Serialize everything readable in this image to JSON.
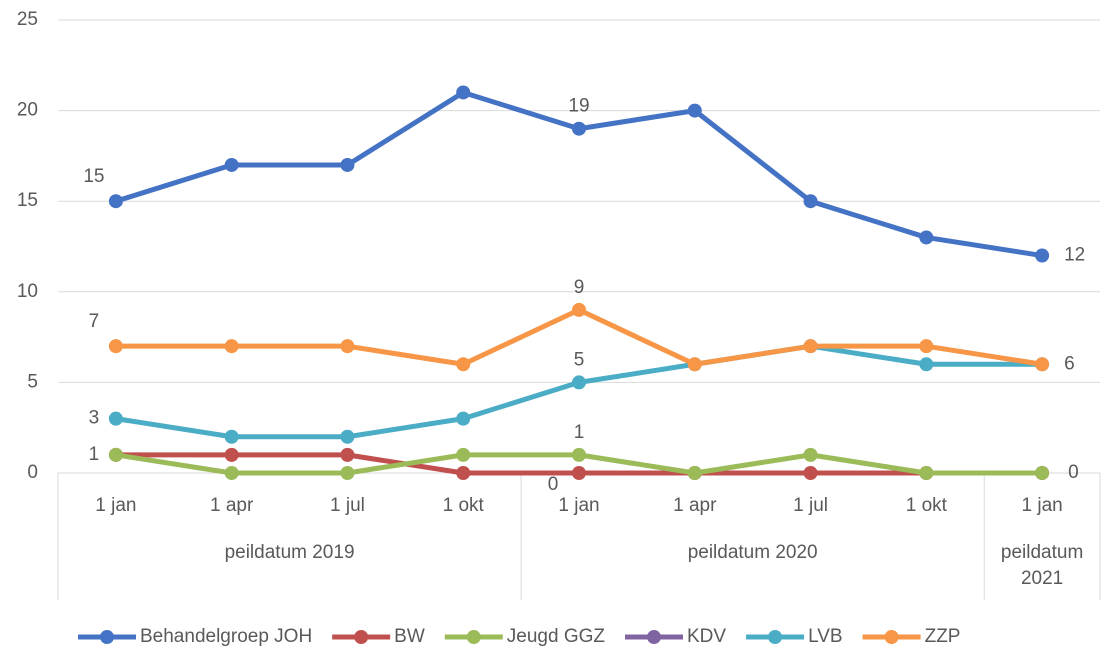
{
  "chart_data": {
    "type": "line",
    "categories": [
      "1 jan",
      "1 apr",
      "1 jul",
      "1 okt",
      "1 jan",
      "1 apr",
      "1 jul",
      "1 okt",
      "1 jan"
    ],
    "groups": [
      {
        "label": "peildatum 2019",
        "count": 4
      },
      {
        "label": "peildatum 2020",
        "count": 4
      },
      {
        "label": "peildatum 2021",
        "count": 1
      }
    ],
    "ylim": [
      0,
      25
    ],
    "yticks": [
      0,
      5,
      10,
      15,
      20,
      25
    ],
    "grid": true,
    "legend": "bottom",
    "series": [
      {
        "name": "Behandelgroep JOH",
        "color": "#4472c4",
        "values": [
          15,
          17,
          17,
          21,
          19,
          20,
          15,
          13,
          12
        ],
        "labeled_points": [
          0,
          4,
          8
        ],
        "label_position": "above"
      },
      {
        "name": "BW",
        "color": "#c0504d",
        "values": [
          1,
          1,
          1,
          0,
          0,
          0,
          0,
          0,
          0
        ],
        "labeled_points": [
          4,
          8
        ],
        "label_position": "below"
      },
      {
        "name": "Jeugd GGZ",
        "color": "#9bbb59",
        "values": [
          1,
          0,
          0,
          1,
          1,
          0,
          1,
          0,
          0
        ],
        "labeled_points": [
          0,
          4
        ],
        "label_position": "above"
      },
      {
        "name": "KDV",
        "color": "#8064a2",
        "values": [
          null,
          null,
          null,
          null,
          null,
          null,
          null,
          null,
          null
        ],
        "labeled_points": [],
        "label_position": "above"
      },
      {
        "name": "LVB",
        "color": "#4bacc6",
        "values": [
          3,
          2,
          2,
          3,
          5,
          6,
          7,
          6,
          6
        ],
        "labeled_points": [
          0,
          4
        ],
        "label_position": "above"
      },
      {
        "name": "ZZP",
        "color": "#f79646",
        "values": [
          7,
          7,
          7,
          6,
          9,
          6,
          7,
          7,
          6
        ],
        "labeled_points": [
          0,
          4,
          8
        ],
        "label_position": "above"
      }
    ]
  }
}
